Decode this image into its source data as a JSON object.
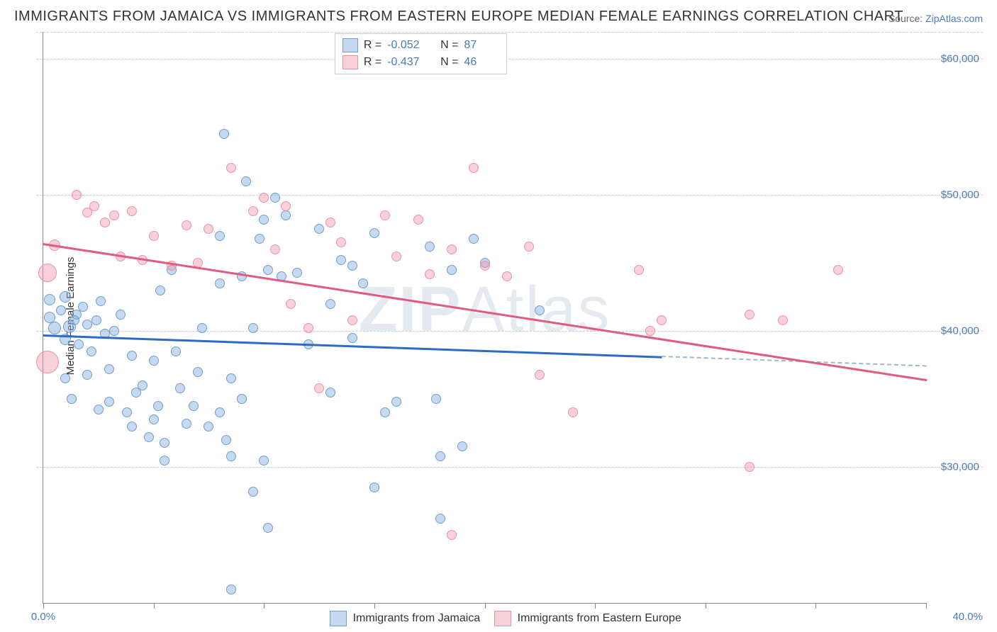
{
  "title": "IMMIGRANTS FROM JAMAICA VS IMMIGRANTS FROM EASTERN EUROPE MEDIAN FEMALE EARNINGS CORRELATION CHART",
  "source_label": "Source: ",
  "source_link": "ZipAtlas.com",
  "ylabel": "Median Female Earnings",
  "watermark_prefix": "ZIP",
  "watermark_suffix": "Atlas",
  "chart": {
    "type": "scatter",
    "xlim": [
      0,
      40
    ],
    "ylim": [
      20000,
      62000
    ],
    "x_ticks": [
      0,
      40
    ],
    "x_tick_labels": [
      "0.0%",
      "40.0%"
    ],
    "x_minor_ticks": [
      0,
      5,
      10,
      15,
      20,
      25,
      30,
      35,
      40
    ],
    "y_ticks": [
      30000,
      40000,
      50000,
      60000
    ],
    "y_tick_labels": [
      "$30,000",
      "$40,000",
      "$50,000",
      "$60,000"
    ],
    "y_extra_grid": [
      62000
    ],
    "background_color": "#ffffff",
    "grid_color": "#cccccc",
    "axis_color": "#888888",
    "marker_radius": 7,
    "marker_stroke_width": 1.5,
    "trendline_width": 3
  },
  "series": [
    {
      "name": "Immigrants from Jamaica",
      "fill": "rgba(130, 170, 220, 0.45)",
      "stroke": "#6e9ed4",
      "line_color": "#2e6bc4",
      "R": "-0.052",
      "N": "87",
      "trend": {
        "x1": 0,
        "y1": 39800,
        "x2": 28,
        "y2": 38200,
        "dash_to_x": 40,
        "dash_to_y": 37500,
        "dash_color": "#9bb8cc"
      },
      "points": [
        {
          "x": 0.3,
          "y": 42300,
          "r": 8
        },
        {
          "x": 0.5,
          "y": 40200,
          "r": 9
        },
        {
          "x": 0.3,
          "y": 41000,
          "r": 8
        },
        {
          "x": 0.8,
          "y": 41500,
          "r": 7
        },
        {
          "x": 1.0,
          "y": 42500,
          "r": 8
        },
        {
          "x": 1.2,
          "y": 40300,
          "r": 9
        },
        {
          "x": 1.5,
          "y": 41200,
          "r": 7
        },
        {
          "x": 1.0,
          "y": 39400,
          "r": 8
        },
        {
          "x": 1.4,
          "y": 40800,
          "r": 7
        },
        {
          "x": 1.8,
          "y": 41800,
          "r": 7
        },
        {
          "x": 2.0,
          "y": 40500,
          "r": 7
        },
        {
          "x": 1.6,
          "y": 39000,
          "r": 7
        },
        {
          "x": 2.2,
          "y": 38500,
          "r": 7
        },
        {
          "x": 2.4,
          "y": 40800,
          "r": 7
        },
        {
          "x": 2.8,
          "y": 39800,
          "r": 7
        },
        {
          "x": 2.6,
          "y": 42200,
          "r": 7
        },
        {
          "x": 1.0,
          "y": 36500,
          "r": 7
        },
        {
          "x": 2.0,
          "y": 36800,
          "r": 7
        },
        {
          "x": 1.3,
          "y": 35000,
          "r": 7
        },
        {
          "x": 2.5,
          "y": 34200,
          "r": 7
        },
        {
          "x": 3.0,
          "y": 37200,
          "r": 7
        },
        {
          "x": 3.5,
          "y": 41200,
          "r": 7
        },
        {
          "x": 3.2,
          "y": 40000,
          "r": 7
        },
        {
          "x": 3.0,
          "y": 34800,
          "r": 7
        },
        {
          "x": 3.8,
          "y": 34000,
          "r": 7
        },
        {
          "x": 4.0,
          "y": 38200,
          "r": 7
        },
        {
          "x": 4.2,
          "y": 35500,
          "r": 7
        },
        {
          "x": 4.0,
          "y": 33000,
          "r": 7
        },
        {
          "x": 4.5,
          "y": 36000,
          "r": 7
        },
        {
          "x": 5.0,
          "y": 33500,
          "r": 7
        },
        {
          "x": 5.2,
          "y": 34500,
          "r": 7
        },
        {
          "x": 4.8,
          "y": 32200,
          "r": 7
        },
        {
          "x": 5.5,
          "y": 31800,
          "r": 7
        },
        {
          "x": 5.0,
          "y": 37800,
          "r": 7
        },
        {
          "x": 5.3,
          "y": 43000,
          "r": 7
        },
        {
          "x": 5.8,
          "y": 44500,
          "r": 7
        },
        {
          "x": 6.0,
          "y": 38500,
          "r": 7
        },
        {
          "x": 6.2,
          "y": 35800,
          "r": 7
        },
        {
          "x": 6.5,
          "y": 33200,
          "r": 7
        },
        {
          "x": 5.5,
          "y": 30500,
          "r": 7
        },
        {
          "x": 6.8,
          "y": 34500,
          "r": 7
        },
        {
          "x": 7.0,
          "y": 37000,
          "r": 7
        },
        {
          "x": 7.2,
          "y": 40200,
          "r": 7
        },
        {
          "x": 7.5,
          "y": 33000,
          "r": 7
        },
        {
          "x": 8.0,
          "y": 43500,
          "r": 7
        },
        {
          "x": 8.0,
          "y": 47000,
          "r": 7
        },
        {
          "x": 8.2,
          "y": 54500,
          "r": 7
        },
        {
          "x": 8.5,
          "y": 36500,
          "r": 7
        },
        {
          "x": 8.0,
          "y": 34000,
          "r": 7
        },
        {
          "x": 8.3,
          "y": 32000,
          "r": 7
        },
        {
          "x": 8.5,
          "y": 30800,
          "r": 7
        },
        {
          "x": 9.0,
          "y": 44000,
          "r": 7
        },
        {
          "x": 9.2,
          "y": 51000,
          "r": 7
        },
        {
          "x": 9.5,
          "y": 40200,
          "r": 7
        },
        {
          "x": 9.8,
          "y": 46800,
          "r": 7
        },
        {
          "x": 10.0,
          "y": 48200,
          "r": 7
        },
        {
          "x": 10.2,
          "y": 44500,
          "r": 7
        },
        {
          "x": 9.0,
          "y": 35000,
          "r": 7
        },
        {
          "x": 10.5,
          "y": 49800,
          "r": 7
        },
        {
          "x": 10.8,
          "y": 44000,
          "r": 7
        },
        {
          "x": 10.0,
          "y": 30500,
          "r": 7
        },
        {
          "x": 9.5,
          "y": 28200,
          "r": 7
        },
        {
          "x": 10.2,
          "y": 25500,
          "r": 7
        },
        {
          "x": 8.5,
          "y": 21000,
          "r": 7
        },
        {
          "x": 11.0,
          "y": 48500,
          "r": 7
        },
        {
          "x": 11.5,
          "y": 44300,
          "r": 7
        },
        {
          "x": 12.0,
          "y": 39000,
          "r": 7
        },
        {
          "x": 12.5,
          "y": 47500,
          "r": 7
        },
        {
          "x": 13.0,
          "y": 42000,
          "r": 7
        },
        {
          "x": 13.5,
          "y": 45200,
          "r": 7
        },
        {
          "x": 13.0,
          "y": 35500,
          "r": 7
        },
        {
          "x": 14.0,
          "y": 44800,
          "r": 7
        },
        {
          "x": 14.5,
          "y": 43500,
          "r": 7
        },
        {
          "x": 14.0,
          "y": 39500,
          "r": 7
        },
        {
          "x": 15.0,
          "y": 47200,
          "r": 7
        },
        {
          "x": 15.5,
          "y": 34000,
          "r": 7
        },
        {
          "x": 16.0,
          "y": 34800,
          "r": 7
        },
        {
          "x": 15.0,
          "y": 28500,
          "r": 7
        },
        {
          "x": 17.5,
          "y": 46200,
          "r": 7
        },
        {
          "x": 17.8,
          "y": 35000,
          "r": 7
        },
        {
          "x": 18.0,
          "y": 30800,
          "r": 7
        },
        {
          "x": 18.0,
          "y": 26200,
          "r": 7
        },
        {
          "x": 19.0,
          "y": 31500,
          "r": 7
        },
        {
          "x": 18.5,
          "y": 44500,
          "r": 7
        },
        {
          "x": 20.0,
          "y": 45000,
          "r": 7
        },
        {
          "x": 19.5,
          "y": 46800,
          "r": 7
        },
        {
          "x": 22.5,
          "y": 41500,
          "r": 7
        }
      ]
    },
    {
      "name": "Immigrants from Eastern Europe",
      "fill": "rgba(240, 150, 170, 0.45)",
      "stroke": "#e994aa",
      "line_color": "#e15a7f",
      "R": "-0.437",
      "N": "46",
      "trend": {
        "x1": 0,
        "y1": 46500,
        "x2": 40,
        "y2": 36500
      },
      "points": [
        {
          "x": 0.2,
          "y": 44300,
          "r": 13
        },
        {
          "x": 0.2,
          "y": 37700,
          "r": 16
        },
        {
          "x": 0.5,
          "y": 46300,
          "r": 8
        },
        {
          "x": 1.5,
          "y": 50000,
          "r": 7
        },
        {
          "x": 2.0,
          "y": 48700,
          "r": 7
        },
        {
          "x": 2.3,
          "y": 49200,
          "r": 7
        },
        {
          "x": 2.8,
          "y": 48000,
          "r": 7
        },
        {
          "x": 3.2,
          "y": 48500,
          "r": 7
        },
        {
          "x": 3.5,
          "y": 45500,
          "r": 7
        },
        {
          "x": 4.0,
          "y": 48800,
          "r": 7
        },
        {
          "x": 4.5,
          "y": 45200,
          "r": 7
        },
        {
          "x": 5.0,
          "y": 47000,
          "r": 7
        },
        {
          "x": 5.8,
          "y": 44800,
          "r": 7
        },
        {
          "x": 6.5,
          "y": 47800,
          "r": 7
        },
        {
          "x": 7.0,
          "y": 45000,
          "r": 7
        },
        {
          "x": 7.5,
          "y": 47500,
          "r": 7
        },
        {
          "x": 8.5,
          "y": 52000,
          "r": 7
        },
        {
          "x": 9.5,
          "y": 48800,
          "r": 7
        },
        {
          "x": 10.0,
          "y": 49800,
          "r": 7
        },
        {
          "x": 10.5,
          "y": 46000,
          "r": 7
        },
        {
          "x": 11.0,
          "y": 49200,
          "r": 7
        },
        {
          "x": 11.2,
          "y": 42000,
          "r": 7
        },
        {
          "x": 12.0,
          "y": 40200,
          "r": 7
        },
        {
          "x": 12.5,
          "y": 35800,
          "r": 7
        },
        {
          "x": 13.0,
          "y": 48000,
          "r": 7
        },
        {
          "x": 13.5,
          "y": 46500,
          "r": 7
        },
        {
          "x": 14.0,
          "y": 40800,
          "r": 7
        },
        {
          "x": 15.5,
          "y": 48500,
          "r": 7
        },
        {
          "x": 16.0,
          "y": 45500,
          "r": 7
        },
        {
          "x": 17.0,
          "y": 48200,
          "r": 7
        },
        {
          "x": 17.5,
          "y": 44200,
          "r": 7
        },
        {
          "x": 18.5,
          "y": 46000,
          "r": 7
        },
        {
          "x": 18.5,
          "y": 25000,
          "r": 7
        },
        {
          "x": 19.5,
          "y": 52000,
          "r": 7
        },
        {
          "x": 20.0,
          "y": 44800,
          "r": 7
        },
        {
          "x": 21.0,
          "y": 44000,
          "r": 7
        },
        {
          "x": 22.0,
          "y": 46200,
          "r": 7
        },
        {
          "x": 22.5,
          "y": 36800,
          "r": 7
        },
        {
          "x": 24.0,
          "y": 34000,
          "r": 7
        },
        {
          "x": 27.0,
          "y": 44500,
          "r": 7
        },
        {
          "x": 28.0,
          "y": 40800,
          "r": 7
        },
        {
          "x": 32.0,
          "y": 41200,
          "r": 7
        },
        {
          "x": 32.0,
          "y": 30000,
          "r": 7
        },
        {
          "x": 33.5,
          "y": 40800,
          "r": 7
        },
        {
          "x": 36.0,
          "y": 44500,
          "r": 7
        },
        {
          "x": 27.5,
          "y": 40000,
          "r": 7
        }
      ]
    }
  ],
  "bottom_legend": [
    {
      "swatch_fill": "rgba(130,170,220,0.45)",
      "swatch_stroke": "#6e9ed4",
      "label": "Immigrants from Jamaica"
    },
    {
      "swatch_fill": "rgba(240,150,170,0.45)",
      "swatch_stroke": "#e994aa",
      "label": "Immigrants from Eastern Europe"
    }
  ]
}
